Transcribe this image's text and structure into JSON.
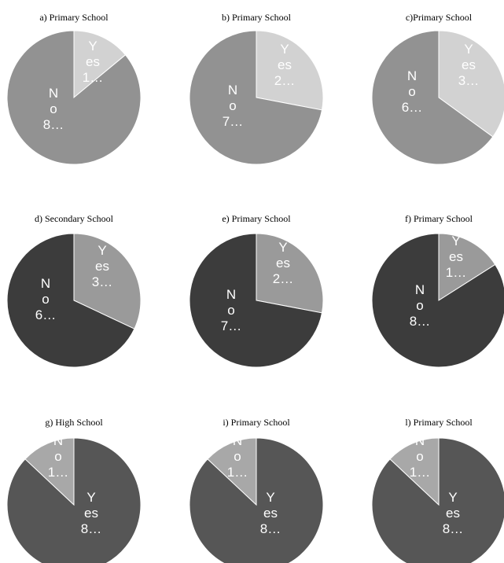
{
  "colors": {
    "yes_light": "#d2d2d2",
    "no_mid": "#929292",
    "yes_mid": "#9a9a9a",
    "no_dark": "#3c3c3c",
    "yes_dark": "#565656",
    "no_light": "#a8a8a8",
    "slice_edge": "#ffffff",
    "label_text": "#ffffff",
    "title_text": "#000000"
  },
  "chart_data": [
    {
      "type": "pie",
      "title": "a) Primary School",
      "slices": [
        {
          "label_lines": [
            "Y",
            "es",
            "1…"
          ],
          "value": 14,
          "color": "#d2d2d2"
        },
        {
          "label_lines": [
            "N",
            "o",
            "8…"
          ],
          "value": 86,
          "color": "#929292"
        }
      ]
    },
    {
      "type": "pie",
      "title": "b) Primary School",
      "slices": [
        {
          "label_lines": [
            "Y",
            "es",
            "2…"
          ],
          "value": 28,
          "color": "#d2d2d2"
        },
        {
          "label_lines": [
            "N",
            "o",
            "7…"
          ],
          "value": 72,
          "color": "#929292"
        }
      ]
    },
    {
      "type": "pie",
      "title": "c)Primary School",
      "slices": [
        {
          "label_lines": [
            "Y",
            "es",
            "3…"
          ],
          "value": 35,
          "color": "#d2d2d2"
        },
        {
          "label_lines": [
            "N",
            "o",
            "6…"
          ],
          "value": 65,
          "color": "#929292"
        }
      ]
    },
    {
      "type": "pie",
      "title": "d) Secondary School",
      "slices": [
        {
          "label_lines": [
            "Y",
            "es",
            "3…"
          ],
          "value": 32,
          "color": "#9a9a9a"
        },
        {
          "label_lines": [
            "N",
            "o",
            "6…"
          ],
          "value": 68,
          "color": "#3c3c3c"
        }
      ]
    },
    {
      "type": "pie",
      "title": "e) Primary School",
      "slices": [
        {
          "label_lines": [
            "Y",
            "es",
            "2…"
          ],
          "value": 28,
          "color": "#9a9a9a"
        },
        {
          "label_lines": [
            "N",
            "o",
            "7…"
          ],
          "value": 72,
          "color": "#3c3c3c"
        }
      ]
    },
    {
      "type": "pie",
      "title": "f) Primary School",
      "slices": [
        {
          "label_lines": [
            "Y",
            "es",
            "1…"
          ],
          "value": 16,
          "color": "#9a9a9a"
        },
        {
          "label_lines": [
            "N",
            "o",
            "8…"
          ],
          "value": 84,
          "color": "#3c3c3c"
        }
      ]
    },
    {
      "type": "pie",
      "title": "g) High School",
      "start": "no",
      "slices": [
        {
          "label_lines": [
            "Y",
            "es",
            "8…"
          ],
          "value": 87,
          "color": "#565656"
        },
        {
          "label_lines": [
            "N",
            "o",
            "1…"
          ],
          "value": 13,
          "color": "#a8a8a8"
        }
      ]
    },
    {
      "type": "pie",
      "title": "i) Primary School",
      "start": "no",
      "slices": [
        {
          "label_lines": [
            "Y",
            "es",
            "8…"
          ],
          "value": 87,
          "color": "#565656"
        },
        {
          "label_lines": [
            "N",
            "o",
            "1…"
          ],
          "value": 13,
          "color": "#a8a8a8"
        }
      ]
    },
    {
      "type": "pie",
      "title": "l) Primary School",
      "start": "no",
      "slices": [
        {
          "label_lines": [
            "Y",
            "es",
            "8…"
          ],
          "value": 87,
          "color": "#565656"
        },
        {
          "label_lines": [
            "N",
            "o",
            "1…"
          ],
          "value": 13,
          "color": "#a8a8a8"
        }
      ]
    }
  ]
}
